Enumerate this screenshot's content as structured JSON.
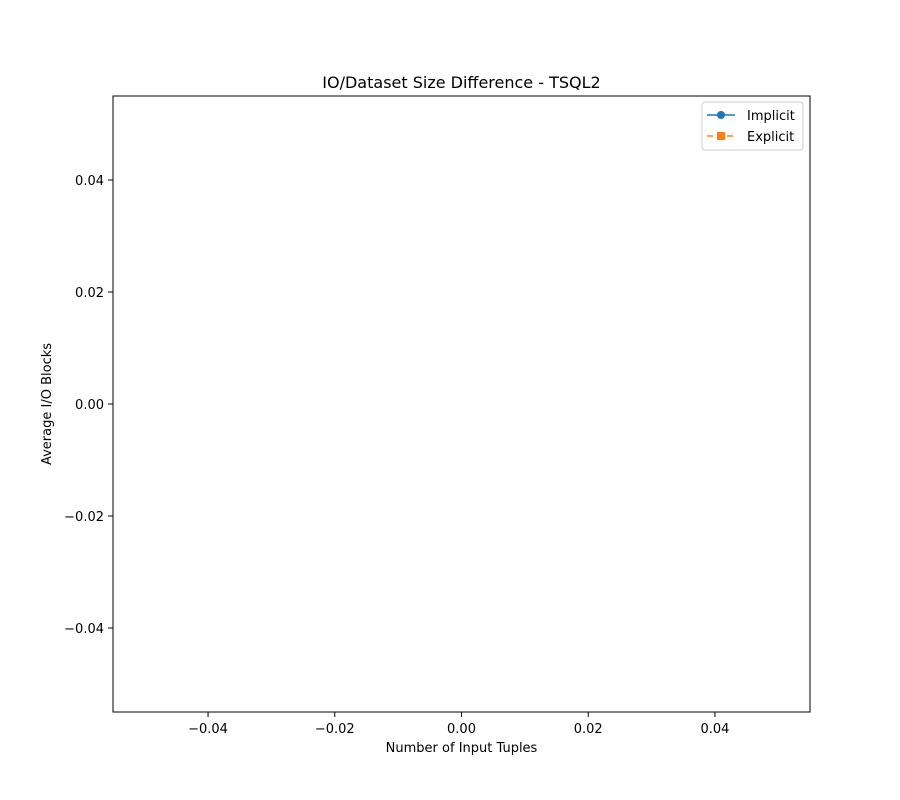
{
  "chart_data": {
    "type": "line",
    "title": "IO/Dataset Size Difference - TSQL2",
    "xlabel": "Number of Input Tuples",
    "ylabel": "Average I/O Blocks",
    "xlim": [
      -0.055,
      0.055
    ],
    "ylim": [
      -0.055,
      0.055
    ],
    "xticks": [
      -0.04,
      -0.02,
      0.0,
      0.02,
      0.04
    ],
    "yticks": [
      -0.04,
      -0.02,
      0.0,
      0.02,
      0.04
    ],
    "xtick_labels": [
      "−0.04",
      "−0.02",
      "0.00",
      "0.02",
      "0.04"
    ],
    "ytick_labels": [
      "−0.04",
      "−0.02",
      "0.00",
      "0.02",
      "0.04"
    ],
    "grid": false,
    "legend_position": "upper right",
    "series": [
      {
        "name": "Implicit",
        "x": [],
        "values": [],
        "color": "#1f77b4",
        "marker": "circle",
        "linestyle": "solid"
      },
      {
        "name": "Explicit",
        "x": [],
        "values": [],
        "color": "#ff7f0e",
        "marker": "square",
        "linestyle": "dashed"
      }
    ]
  }
}
